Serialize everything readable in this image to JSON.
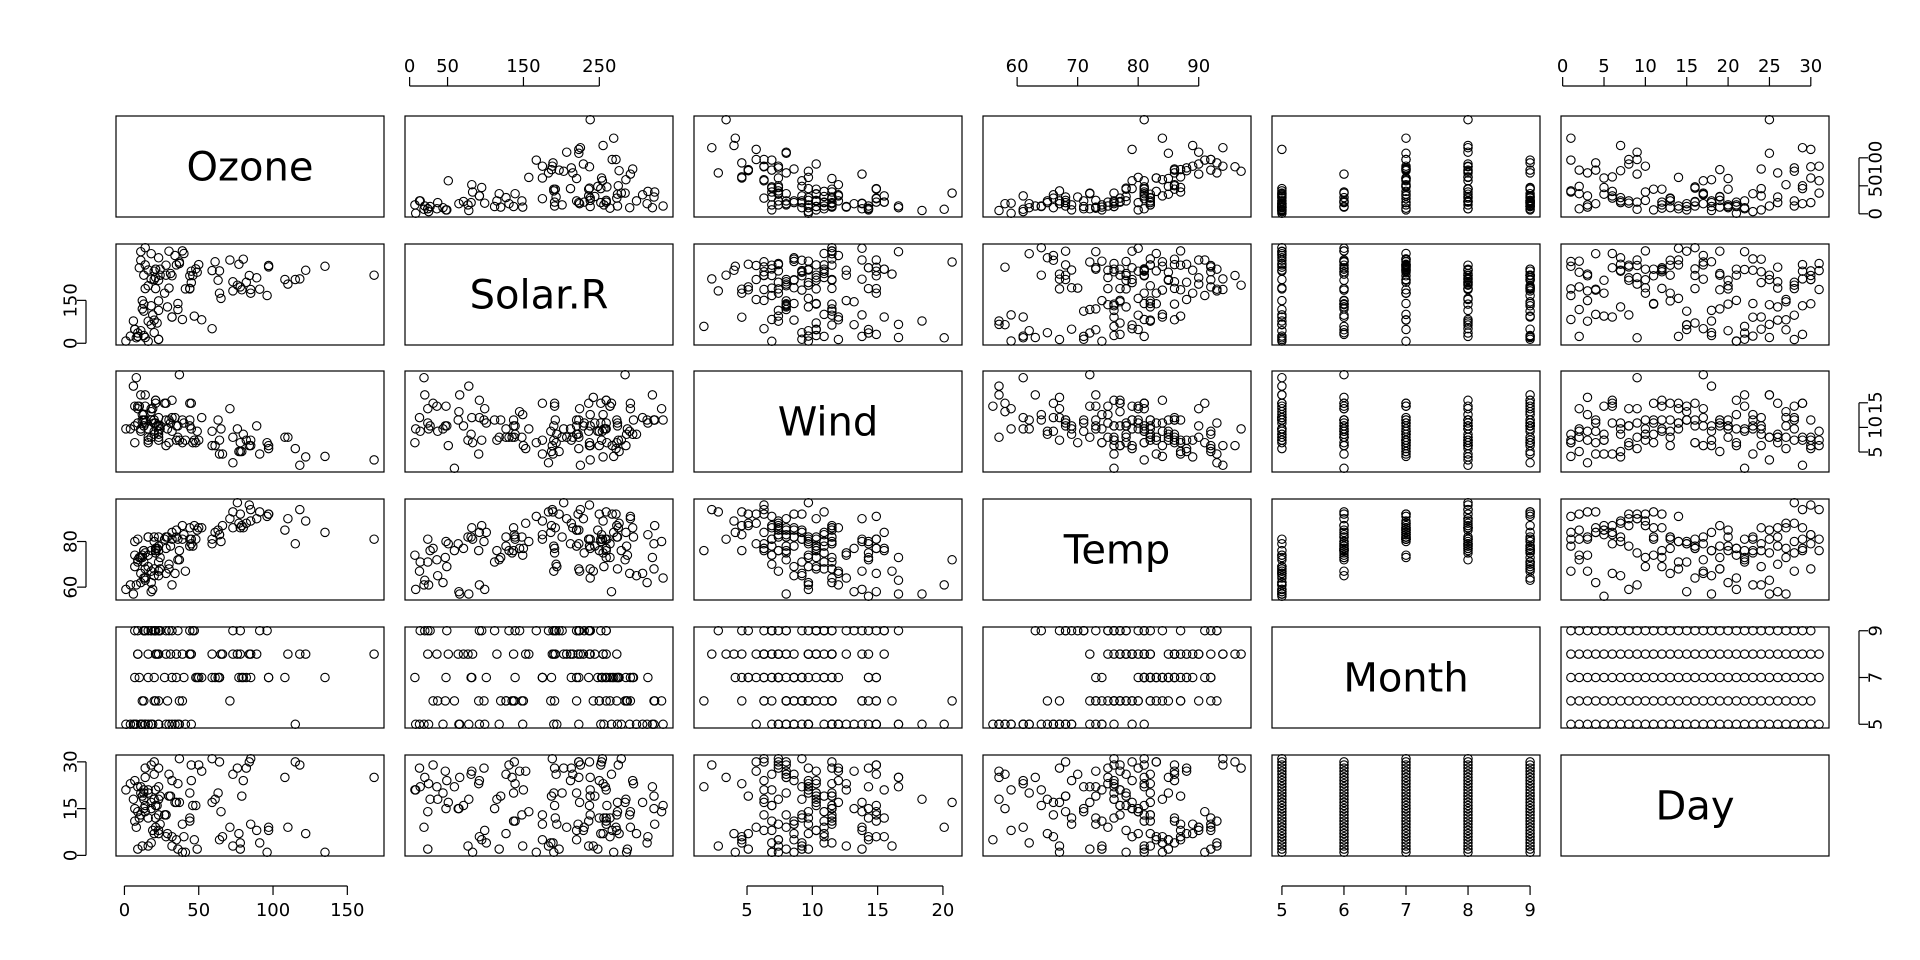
{
  "chart_data": {
    "type": "scatter",
    "layout": "pairs",
    "grid": false,
    "variables": [
      "Ozone",
      "Solar.R",
      "Wind",
      "Temp",
      "Month",
      "Day"
    ],
    "axes": {
      "Ozone": {
        "range": [
          1,
          168
        ],
        "ticks": [
          0,
          50,
          100,
          150
        ],
        "ticks_alt": [
          0,
          50,
          100
        ]
      },
      "Solar.R": {
        "range": [
          7,
          334
        ],
        "ticks": [
          0,
          50,
          150,
          250
        ],
        "ticks_alt": [
          0,
          150
        ]
      },
      "Wind": {
        "range": [
          1.7,
          20.7
        ],
        "ticks": [
          5,
          10,
          15,
          20
        ],
        "ticks_alt": [
          5,
          10,
          15
        ]
      },
      "Temp": {
        "range": [
          56,
          97
        ],
        "ticks": [
          60,
          70,
          80,
          90
        ],
        "ticks_alt": [
          60,
          80
        ]
      },
      "Month": {
        "range": [
          5,
          9
        ],
        "ticks": [
          5,
          6,
          7,
          8,
          9
        ],
        "ticks_alt": [
          5,
          7,
          9
        ]
      },
      "Day": {
        "range": [
          1,
          31
        ],
        "ticks": [
          0,
          5,
          10,
          15,
          20,
          25,
          30
        ],
        "ticks_alt": [
          0,
          15,
          30
        ]
      }
    },
    "tick_label_positions": {
      "top": [
        "Solar.R",
        "Temp",
        "Day"
      ],
      "bottom": [
        "Ozone",
        "Wind",
        "Month"
      ],
      "left": [
        "Solar.R",
        "Temp",
        "Day"
      ],
      "right": [
        "Ozone",
        "Wind",
        "Month"
      ]
    },
    "columns": [
      "Ozone",
      "Solar.R",
      "Wind",
      "Temp",
      "Month",
      "Day"
    ],
    "rows": [
      [
        41,
        190,
        7.4,
        67,
        5,
        1
      ],
      [
        36,
        118,
        8,
        72,
        5,
        2
      ],
      [
        12,
        149,
        12.6,
        74,
        5,
        3
      ],
      [
        18,
        313,
        11.5,
        62,
        5,
        4
      ],
      [
        null,
        null,
        14.3,
        56,
        5,
        5
      ],
      [
        28,
        null,
        14.9,
        66,
        5,
        6
      ],
      [
        23,
        299,
        8.6,
        65,
        5,
        7
      ],
      [
        19,
        99,
        13.8,
        59,
        5,
        8
      ],
      [
        8,
        19,
        20.1,
        61,
        5,
        9
      ],
      [
        null,
        194,
        8.6,
        69,
        5,
        10
      ],
      [
        7,
        null,
        6.9,
        74,
        5,
        11
      ],
      [
        16,
        256,
        9.7,
        69,
        5,
        12
      ],
      [
        11,
        290,
        9.2,
        66,
        5,
        13
      ],
      [
        14,
        274,
        10.9,
        68,
        5,
        14
      ],
      [
        18,
        65,
        13.2,
        58,
        5,
        15
      ],
      [
        14,
        334,
        11.5,
        64,
        5,
        16
      ],
      [
        34,
        307,
        12,
        66,
        5,
        17
      ],
      [
        6,
        78,
        18.4,
        57,
        5,
        18
      ],
      [
        30,
        322,
        11.5,
        68,
        5,
        19
      ],
      [
        11,
        44,
        9.7,
        62,
        5,
        20
      ],
      [
        1,
        8,
        9.7,
        59,
        5,
        21
      ],
      [
        11,
        320,
        16.6,
        73,
        5,
        22
      ],
      [
        4,
        25,
        9.7,
        61,
        5,
        23
      ],
      [
        32,
        92,
        12,
        61,
        5,
        24
      ],
      [
        null,
        66,
        16.6,
        57,
        5,
        25
      ],
      [
        null,
        266,
        14.9,
        58,
        5,
        26
      ],
      [
        null,
        null,
        8,
        57,
        5,
        27
      ],
      [
        23,
        13,
        12,
        67,
        5,
        28
      ],
      [
        45,
        252,
        14.9,
        81,
        5,
        29
      ],
      [
        115,
        223,
        5.7,
        79,
        5,
        30
      ],
      [
        37,
        279,
        7.4,
        76,
        5,
        31
      ],
      [
        null,
        286,
        8.6,
        78,
        6,
        1
      ],
      [
        null,
        287,
        9.7,
        74,
        6,
        2
      ],
      [
        null,
        242,
        16.1,
        67,
        6,
        3
      ],
      [
        null,
        186,
        9.2,
        84,
        6,
        4
      ],
      [
        null,
        220,
        8.6,
        85,
        6,
        5
      ],
      [
        null,
        264,
        14.3,
        79,
        6,
        6
      ],
      [
        29,
        127,
        9.7,
        82,
        6,
        7
      ],
      [
        null,
        273,
        6.9,
        87,
        6,
        8
      ],
      [
        71,
        291,
        13.8,
        90,
        6,
        9
      ],
      [
        39,
        323,
        11.5,
        87,
        6,
        10
      ],
      [
        null,
        259,
        10.9,
        93,
        6,
        11
      ],
      [
        null,
        250,
        9.2,
        92,
        6,
        12
      ],
      [
        23,
        148,
        8,
        82,
        6,
        13
      ],
      [
        null,
        332,
        13.8,
        80,
        6,
        14
      ],
      [
        null,
        322,
        11.5,
        79,
        6,
        15
      ],
      [
        21,
        191,
        14.9,
        77,
        6,
        16
      ],
      [
        37,
        284,
        20.7,
        72,
        6,
        17
      ],
      [
        20,
        37,
        9.2,
        65,
        6,
        18
      ],
      [
        12,
        120,
        11.5,
        73,
        6,
        19
      ],
      [
        13,
        137,
        10.3,
        76,
        6,
        20
      ],
      [
        null,
        150,
        6.3,
        77,
        6,
        21
      ],
      [
        null,
        59,
        1.7,
        76,
        6,
        22
      ],
      [
        null,
        91,
        4.6,
        76,
        6,
        23
      ],
      [
        null,
        250,
        6.3,
        76,
        6,
        24
      ],
      [
        null,
        135,
        8,
        75,
        6,
        25
      ],
      [
        null,
        127,
        8,
        78,
        6,
        26
      ],
      [
        null,
        47,
        10.3,
        73,
        6,
        27
      ],
      [
        null,
        98,
        11.5,
        80,
        6,
        28
      ],
      [
        null,
        31,
        14.9,
        77,
        6,
        29
      ],
      [
        null,
        138,
        8,
        83,
        6,
        30
      ],
      [
        135,
        269,
        4.1,
        84,
        7,
        1
      ],
      [
        49,
        248,
        9.2,
        85,
        7,
        2
      ],
      [
        32,
        236,
        9.2,
        81,
        7,
        3
      ],
      [
        null,
        101,
        10.9,
        84,
        7,
        4
      ],
      [
        64,
        175,
        4.6,
        83,
        7,
        5
      ],
      [
        40,
        314,
        10.9,
        83,
        7,
        6
      ],
      [
        77,
        276,
        5.1,
        88,
        7,
        7
      ],
      [
        97,
        267,
        6.3,
        92,
        7,
        8
      ],
      [
        97,
        272,
        5.7,
        92,
        7,
        9
      ],
      [
        85,
        175,
        7.4,
        89,
        7,
        10
      ],
      [
        null,
        139,
        8.6,
        82,
        7,
        11
      ],
      [
        10,
        264,
        14.3,
        73,
        7,
        12
      ],
      [
        27,
        175,
        14.9,
        81,
        7,
        13
      ],
      [
        null,
        291,
        14.9,
        91,
        7,
        14
      ],
      [
        7,
        48,
        14.3,
        80,
        7,
        15
      ],
      [
        48,
        260,
        6.9,
        81,
        7,
        16
      ],
      [
        35,
        274,
        10.3,
        82,
        7,
        17
      ],
      [
        61,
        285,
        6.3,
        84,
        7,
        18
      ],
      [
        79,
        187,
        5.1,
        87,
        7,
        19
      ],
      [
        63,
        220,
        11.5,
        85,
        7,
        20
      ],
      [
        16,
        7,
        6.9,
        74,
        7,
        21
      ],
      [
        null,
        258,
        9.7,
        81,
        7,
        22
      ],
      [
        null,
        295,
        11.5,
        82,
        7,
        23
      ],
      [
        80,
        294,
        8.6,
        86,
        7,
        24
      ],
      [
        108,
        223,
        8,
        85,
        7,
        25
      ],
      [
        20,
        81,
        8.6,
        82,
        7,
        26
      ],
      [
        52,
        82,
        12,
        86,
        7,
        27
      ],
      [
        82,
        213,
        7.4,
        88,
        7,
        28
      ],
      [
        50,
        275,
        7.4,
        86,
        7,
        29
      ],
      [
        64,
        253,
        7.4,
        83,
        7,
        30
      ],
      [
        59,
        254,
        9.2,
        81,
        7,
        31
      ],
      [
        39,
        83,
        6.9,
        81,
        8,
        1
      ],
      [
        9,
        24,
        13.8,
        81,
        8,
        2
      ],
      [
        16,
        77,
        7.4,
        82,
        8,
        3
      ],
      [
        78,
        null,
        6.9,
        86,
        8,
        4
      ],
      [
        35,
        null,
        7.4,
        85,
        8,
        5
      ],
      [
        66,
        null,
        4.6,
        87,
        8,
        6
      ],
      [
        122,
        255,
        4,
        89,
        8,
        7
      ],
      [
        89,
        229,
        10.3,
        90,
        8,
        8
      ],
      [
        110,
        207,
        8,
        90,
        8,
        9
      ],
      [
        null,
        222,
        8.6,
        92,
        8,
        10
      ],
      [
        null,
        137,
        11.5,
        86,
        8,
        11
      ],
      [
        44,
        192,
        11.5,
        86,
        8,
        12
      ],
      [
        28,
        273,
        11.5,
        82,
        8,
        13
      ],
      [
        65,
        157,
        9.7,
        80,
        8,
        14
      ],
      [
        null,
        64,
        11.5,
        79,
        8,
        15
      ],
      [
        22,
        71,
        10.3,
        77,
        8,
        16
      ],
      [
        59,
        51,
        6.3,
        79,
        8,
        17
      ],
      [
        23,
        115,
        7.4,
        76,
        8,
        18
      ],
      [
        31,
        244,
        10.9,
        78,
        8,
        19
      ],
      [
        44,
        190,
        10.3,
        78,
        8,
        20
      ],
      [
        21,
        259,
        15.5,
        77,
        8,
        21
      ],
      [
        9,
        36,
        14.3,
        72,
        8,
        22
      ],
      [
        null,
        255,
        12.6,
        75,
        8,
        23
      ],
      [
        45,
        212,
        9.7,
        79,
        8,
        24
      ],
      [
        168,
        238,
        3.4,
        81,
        8,
        25
      ],
      [
        73,
        215,
        8,
        86,
        8,
        26
      ],
      [
        null,
        153,
        5.7,
        88,
        8,
        27
      ],
      [
        76,
        203,
        9.7,
        97,
        8,
        28
      ],
      [
        118,
        225,
        2.3,
        94,
        8,
        29
      ],
      [
        84,
        237,
        6.3,
        96,
        8,
        30
      ],
      [
        85,
        188,
        6.3,
        94,
        8,
        31
      ],
      [
        96,
        167,
        6.9,
        91,
        9,
        1
      ],
      [
        78,
        197,
        5.1,
        92,
        9,
        2
      ],
      [
        73,
        183,
        2.8,
        93,
        9,
        3
      ],
      [
        91,
        189,
        4.6,
        93,
        9,
        4
      ],
      [
        47,
        95,
        7.4,
        87,
        9,
        5
      ],
      [
        32,
        92,
        15.5,
        84,
        9,
        6
      ],
      [
        20,
        252,
        10.9,
        80,
        9,
        7
      ],
      [
        23,
        220,
        10.3,
        78,
        9,
        8
      ],
      [
        21,
        230,
        10.9,
        75,
        9,
        9
      ],
      [
        24,
        259,
        9.7,
        73,
        9,
        10
      ],
      [
        44,
        236,
        14.9,
        81,
        9,
        11
      ],
      [
        21,
        259,
        15.5,
        76,
        9,
        12
      ],
      [
        28,
        238,
        6.3,
        77,
        9,
        13
      ],
      [
        9,
        24,
        10.9,
        71,
        9,
        14
      ],
      [
        13,
        112,
        11.5,
        71,
        9,
        15
      ],
      [
        46,
        237,
        6.9,
        78,
        9,
        16
      ],
      [
        18,
        224,
        13.8,
        67,
        9,
        17
      ],
      [
        13,
        27,
        10.3,
        76,
        9,
        18
      ],
      [
        24,
        238,
        10.3,
        68,
        9,
        19
      ],
      [
        16,
        201,
        8,
        82,
        9,
        20
      ],
      [
        13,
        238,
        12.6,
        64,
        9,
        21
      ],
      [
        23,
        14,
        9.2,
        71,
        9,
        22
      ],
      [
        36,
        139,
        10.3,
        81,
        9,
        23
      ],
      [
        7,
        49,
        10.3,
        69,
        9,
        24
      ],
      [
        14,
        20,
        16.6,
        63,
        9,
        25
      ],
      [
        30,
        193,
        6.9,
        70,
        9,
        26
      ],
      [
        null,
        145,
        13.2,
        77,
        9,
        27
      ],
      [
        14,
        191,
        14.3,
        75,
        9,
        28
      ],
      [
        18,
        131,
        8,
        76,
        9,
        29
      ],
      [
        20,
        223,
        11.5,
        68,
        9,
        30
      ]
    ]
  }
}
